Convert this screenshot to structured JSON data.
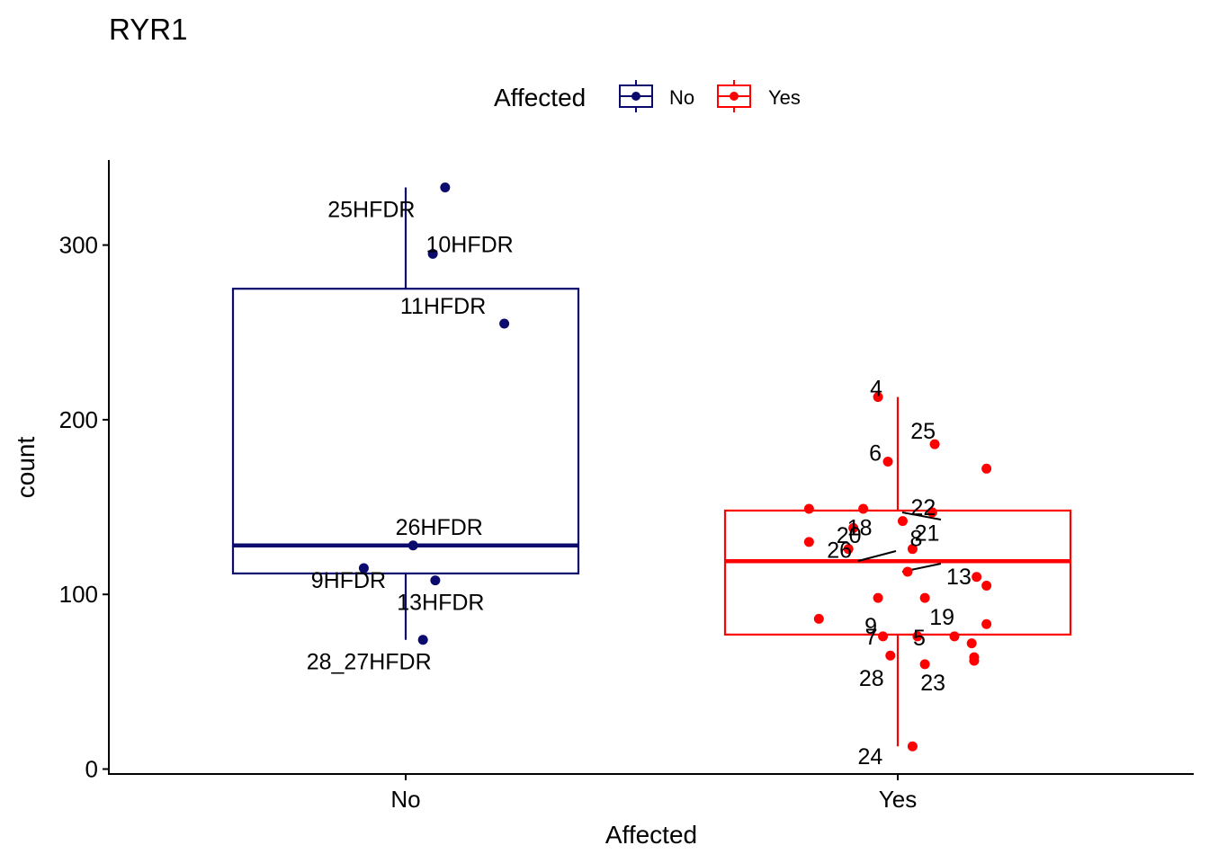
{
  "chart_data": {
    "type": "box",
    "title": "RYR1",
    "xlabel": "Affected",
    "ylabel": "count",
    "ylim": [
      -5,
      350
    ],
    "yticks": [
      0,
      100,
      200,
      300
    ],
    "categories": [
      "No",
      "Yes"
    ],
    "grid": false,
    "legend": {
      "title": "Affected",
      "position": "top",
      "entries": [
        "No",
        "Yes"
      ]
    },
    "colors": {
      "No": "#0B0B6E",
      "Yes": "#FF0000"
    },
    "groups": [
      {
        "name": "No",
        "box": {
          "lower_whisker": 74,
          "q1": 112,
          "median": 128,
          "q3": 275,
          "upper_whisker": 333
        },
        "points": [
          {
            "label": "25HFDR",
            "jitter": 0.08,
            "y": 333
          },
          {
            "label": "10HFDR",
            "jitter": 0.055,
            "y": 295
          },
          {
            "label": "11HFDR",
            "jitter": 0.2,
            "y": 255
          },
          {
            "label": "26HFDR",
            "jitter": 0.015,
            "y": 128
          },
          {
            "label": "9HFDR",
            "jitter": -0.085,
            "y": 115
          },
          {
            "label": "13HFDR",
            "jitter": 0.06,
            "y": 108
          },
          {
            "label": "28_27HFDR",
            "jitter": 0.035,
            "y": 74
          }
        ]
      },
      {
        "name": "Yes",
        "box": {
          "lower_whisker": 13,
          "q1": 77,
          "median": 119,
          "q3": 148,
          "upper_whisker": 213
        },
        "points": [
          {
            "label": "4",
            "jitter": -0.04,
            "y": 213
          },
          {
            "label": "25",
            "jitter": 0.075,
            "y": 186
          },
          {
            "label": "",
            "jitter": 0.18,
            "y": 172
          },
          {
            "label": "6",
            "jitter": -0.02,
            "y": 176
          },
          {
            "label": "",
            "jitter": -0.18,
            "y": 149
          },
          {
            "label": "20",
            "jitter": -0.07,
            "y": 149
          },
          {
            "label": "22",
            "jitter": 0.07,
            "y": 147
          },
          {
            "label": "21",
            "jitter": 0.01,
            "y": 142
          },
          {
            "label": "18",
            "jitter": -0.09,
            "y": 138
          },
          {
            "label": "",
            "jitter": -0.18,
            "y": 130
          },
          {
            "label": "26",
            "jitter": -0.1,
            "y": 126
          },
          {
            "label": "8",
            "jitter": 0.03,
            "y": 126
          },
          {
            "label": "13",
            "jitter": 0.02,
            "y": 113
          },
          {
            "label": "",
            "jitter": 0.16,
            "y": 110
          },
          {
            "label": "",
            "jitter": 0.18,
            "y": 105
          },
          {
            "label": "9",
            "jitter": -0.04,
            "y": 98
          },
          {
            "label": "19",
            "jitter": 0.055,
            "y": 98
          },
          {
            "label": "",
            "jitter": -0.16,
            "y": 86
          },
          {
            "label": "",
            "jitter": 0.18,
            "y": 83
          },
          {
            "label": "7",
            "jitter": -0.03,
            "y": 76
          },
          {
            "label": "5",
            "jitter": 0.04,
            "y": 76
          },
          {
            "label": "",
            "jitter": 0.115,
            "y": 76
          },
          {
            "label": "",
            "jitter": 0.15,
            "y": 72
          },
          {
            "label": "",
            "jitter": 0.155,
            "y": 64
          },
          {
            "label": "",
            "jitter": 0.155,
            "y": 62
          },
          {
            "label": "28",
            "jitter": -0.015,
            "y": 65
          },
          {
            "label": "23",
            "jitter": 0.055,
            "y": 60
          },
          {
            "label": "24",
            "jitter": 0.03,
            "y": 13
          }
        ]
      }
    ]
  }
}
